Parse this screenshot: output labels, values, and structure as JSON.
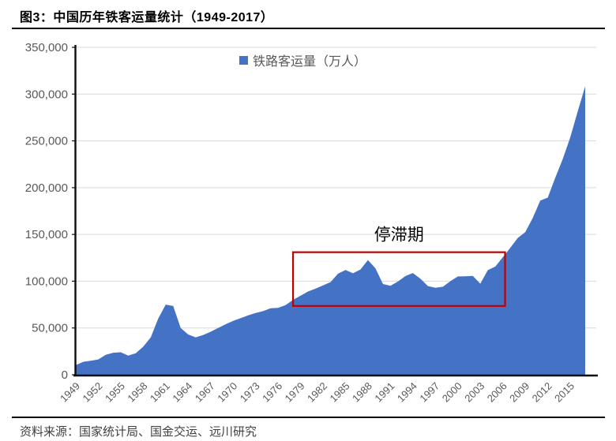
{
  "header": {
    "title": "图3：中国历年铁客运量统计（1949-2017）"
  },
  "footer": {
    "source": "资料来源：国家统计局、国金交运、远川研究"
  },
  "chart_data": {
    "type": "area",
    "title": "",
    "legend_position": "top",
    "grid": true,
    "series": [
      {
        "name": "铁路客运量（万人）",
        "values": [
          10297,
          13829,
          15000,
          16352,
          21348,
          23489,
          24000,
          20500,
          23000,
          30000,
          40000,
          60000,
          75000,
          73500,
          50000,
          43000,
          40000,
          42500,
          46000,
          50000,
          54000,
          57500,
          60500,
          63500,
          66000,
          68000,
          71000,
          71500,
          74500,
          80000,
          84500,
          89000,
          92000,
          95500,
          99000,
          108000,
          112000,
          108500,
          112500,
          122600,
          113800,
          97000,
          95100,
          99700,
          105500,
          108700,
          102700,
          94800,
          93000,
          94000,
          100000,
          105100,
          105200,
          105600,
          97300,
          111800,
          115600,
          125700,
          135700,
          146200,
          152500,
          167600,
          186200,
          189300,
          210600,
          230500,
          253500,
          281400,
          308400
        ]
      }
    ],
    "x_start_year": 1949,
    "x_end_year": 2017,
    "xlabel": "",
    "ylabel": "",
    "ylim": [
      0,
      350000
    ],
    "ytick_labels": [
      "0",
      "50,000",
      "100,000",
      "150,000",
      "200,000",
      "250,000",
      "300,000",
      "350,000"
    ],
    "xtick_labels": [
      "1949",
      "1952",
      "1955",
      "1958",
      "1961",
      "1964",
      "1967",
      "1970",
      "1973",
      "1976",
      "1979",
      "1982",
      "1985",
      "1988",
      "1991",
      "1994",
      "1997",
      "2000",
      "2003",
      "2006",
      "2009",
      "2012",
      "2015"
    ],
    "annotation": {
      "label": "停滞期",
      "x_range": [
        1978,
        2006.3
      ],
      "y_range": [
        73500,
        131000
      ]
    },
    "colors": {
      "series_fill": "#4472c4",
      "annotation_box": "#c00000",
      "gridline": "#d9d9d9",
      "axis_line": "#0d0d0d",
      "tick_label": "#595959",
      "legend_label": "#595959",
      "annotation_label": "#000000"
    }
  }
}
